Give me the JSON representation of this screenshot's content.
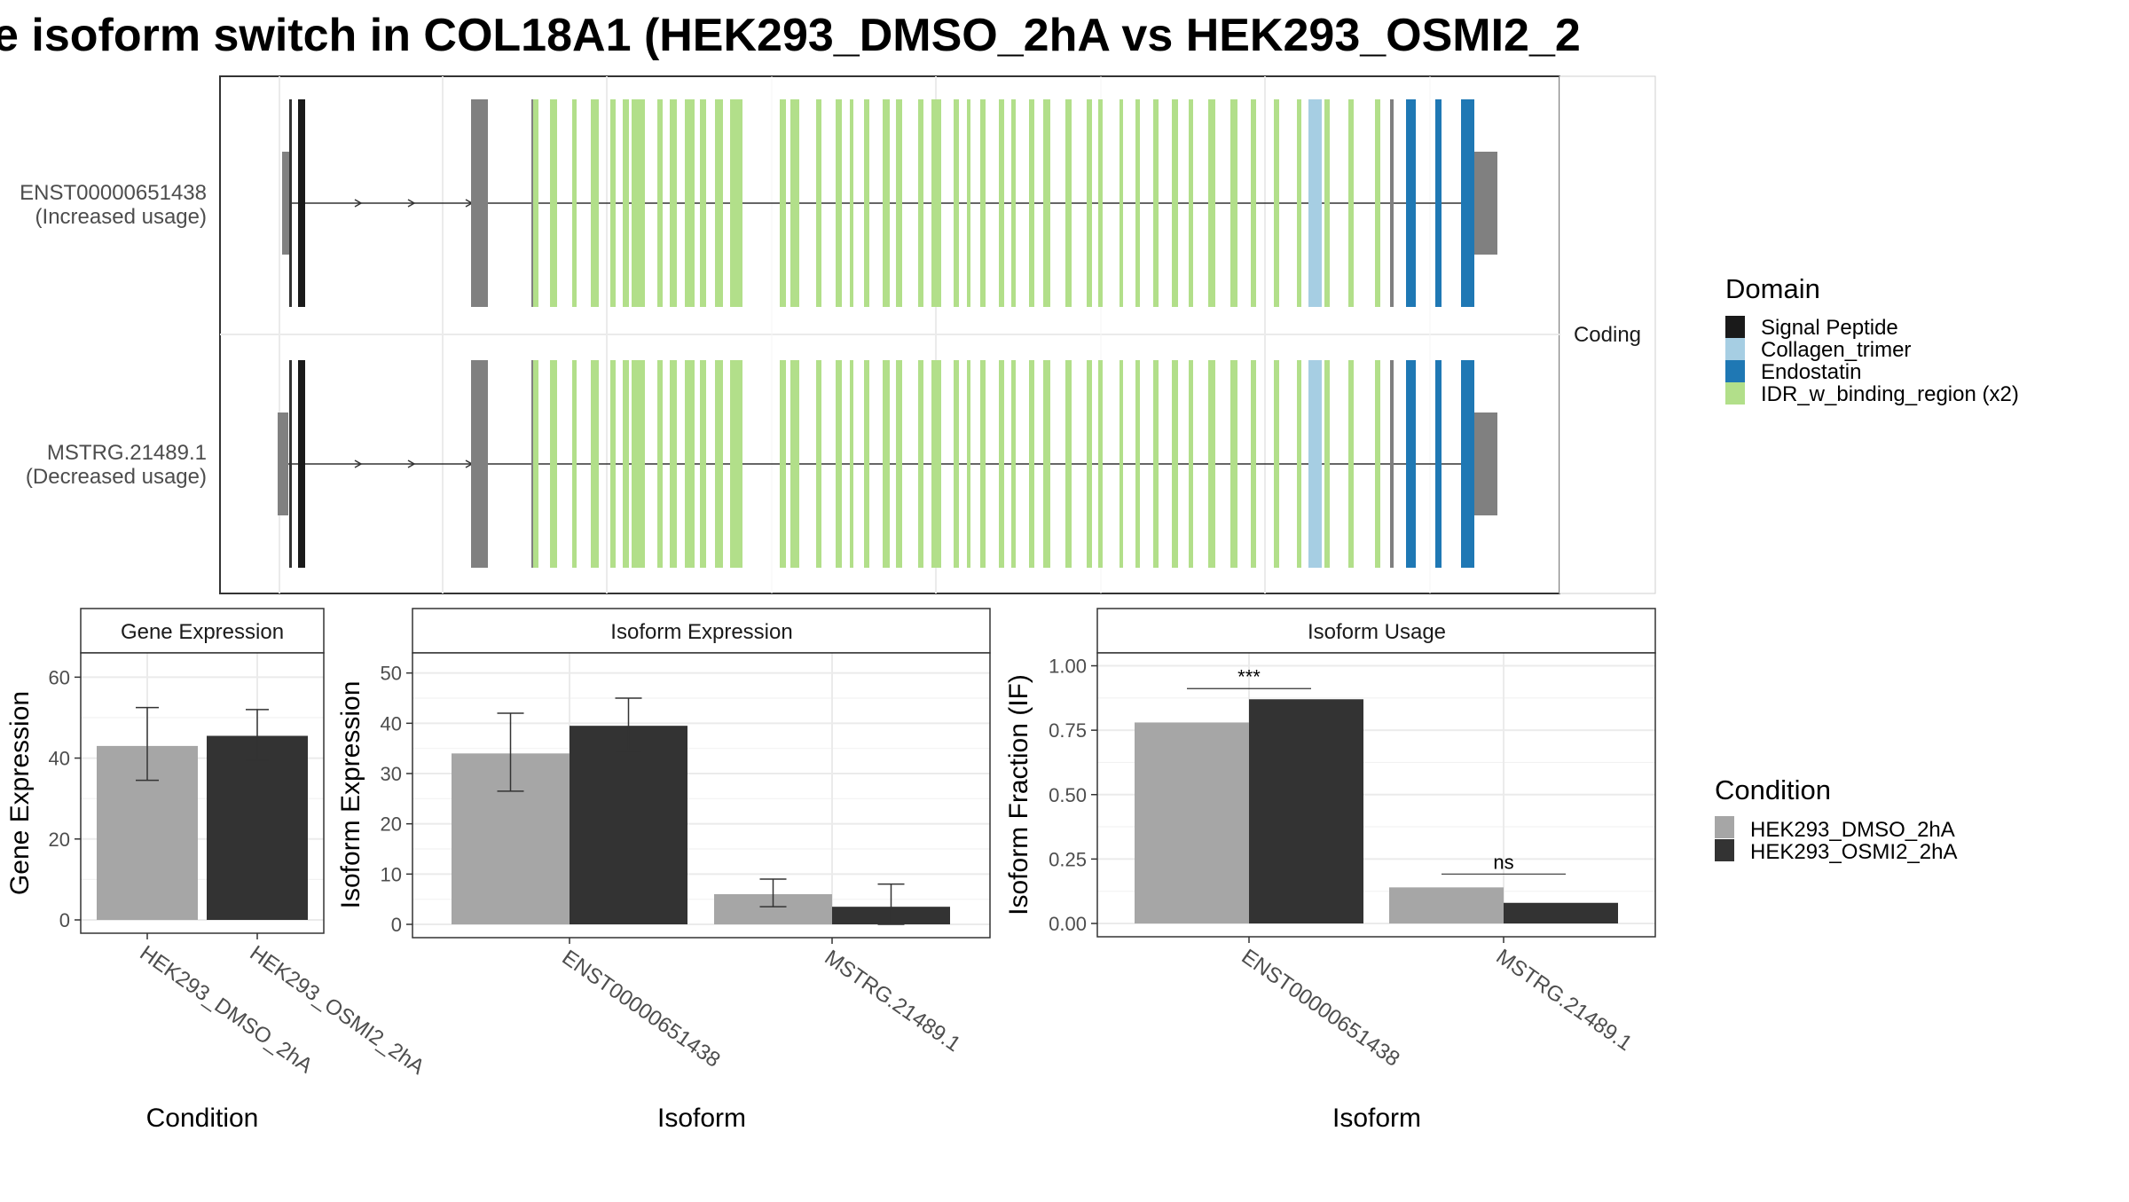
{
  "title": "e isoform switch in COL18A1 (HEK293_DMSO_2hA vs HEK293_OSMI2_2",
  "transcripts": {
    "strip_label": "Coding",
    "rows": [
      {
        "id": "ENST00000651438",
        "usage": "(Increased usage)"
      },
      {
        "id": "MSTRG.21489.1",
        "usage": "(Decreased usage)"
      }
    ]
  },
  "domain_legend": {
    "title": "Domain",
    "items": [
      {
        "label": "Signal Peptide",
        "color": "#1a1a1a"
      },
      {
        "label": "Collagen_trimer",
        "color": "#a6cee3"
      },
      {
        "label": "Endostatin",
        "color": "#1f78b4"
      },
      {
        "label": "IDR_w_binding_region (x2)",
        "color": "#b2df8a"
      }
    ]
  },
  "condition_legend": {
    "title": "Condition",
    "items": [
      {
        "label": "HEK293_DMSO_2hA",
        "color": "#a6a6a6"
      },
      {
        "label": "HEK293_OSMI2_2hA",
        "color": "#333333"
      }
    ]
  },
  "chart_data": [
    {
      "type": "bar",
      "title": "Gene Expression",
      "xlabel": "Condition",
      "ylabel": "Gene Expression",
      "ylim": [
        0,
        66
      ],
      "yticks": [
        "0",
        "20",
        "40",
        "60"
      ],
      "categories": [
        "HEK293_DMSO_2hA",
        "HEK293_OSMI2_2hA"
      ],
      "values": [
        43,
        45.5
      ],
      "errors": [
        [
          34.5,
          52.5
        ],
        [
          39.5,
          52
        ]
      ],
      "colors": [
        "#a6a6a6",
        "#333333"
      ]
    },
    {
      "type": "bar",
      "title": "Isoform Expression",
      "xlabel": "Isoform",
      "ylabel": "Isoform Expression",
      "ylim": [
        0,
        54
      ],
      "yticks": [
        "0",
        "10",
        "20",
        "30",
        "40",
        "50"
      ],
      "categories": [
        "ENST00000651438",
        "MSTRG.21489.1"
      ],
      "series": [
        {
          "name": "HEK293_DMSO_2hA",
          "values": [
            34,
            6
          ],
          "errors": [
            [
              26.5,
              42
            ],
            [
              3.5,
              9
            ]
          ]
        },
        {
          "name": "HEK293_OSMI2_2hA",
          "values": [
            39.5,
            3.5
          ],
          "errors": [
            [
              34.5,
              45
            ],
            [
              0,
              8
            ]
          ]
        }
      ]
    },
    {
      "type": "bar",
      "title": "Isoform Usage",
      "xlabel": "Isoform",
      "ylabel": "Isoform Fraction (IF)",
      "ylim": [
        0,
        1.05
      ],
      "yticks": [
        "0.00",
        "0.25",
        "0.50",
        "0.75",
        "1.00"
      ],
      "categories": [
        "ENST00000651438",
        "MSTRG.21489.1"
      ],
      "series": [
        {
          "name": "HEK293_DMSO_2hA",
          "values": [
            0.78,
            0.14
          ]
        },
        {
          "name": "HEK293_OSMI2_2hA",
          "values": [
            0.87,
            0.08
          ]
        }
      ],
      "significance": [
        "***",
        "ns"
      ]
    }
  ]
}
